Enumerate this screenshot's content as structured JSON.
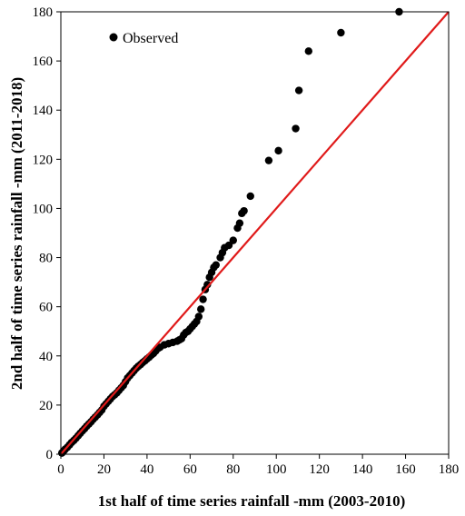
{
  "chart_data": {
    "type": "scatter",
    "title": "",
    "xlabel": "1st half of time series rainfall -mm (2003-2010)",
    "ylabel": "2nd half of time series rainfall -mm (2011-2018)",
    "xlim": [
      0,
      180
    ],
    "ylim": [
      0,
      180
    ],
    "x_ticks": [
      "0",
      "20",
      "40",
      "60",
      "80",
      "100",
      "120",
      "140",
      "160",
      "180"
    ],
    "y_ticks": [
      "0",
      "20",
      "40",
      "60",
      "80",
      "100",
      "120",
      "140",
      "160",
      "180"
    ],
    "grid": false,
    "legend_position": "top-left",
    "series": [
      {
        "name": "Observed",
        "color": "#000000",
        "marker": "circle",
        "points": [
          [
            0.5,
            0.5
          ],
          [
            1,
            1
          ],
          [
            1.5,
            1.5
          ],
          [
            2,
            2
          ],
          [
            3,
            2.8
          ],
          [
            4,
            3.8
          ],
          [
            5,
            4.8
          ],
          [
            6,
            5.6
          ],
          [
            7,
            6.5
          ],
          [
            8,
            7.5
          ],
          [
            9,
            8.5
          ],
          [
            10,
            9.5
          ],
          [
            11,
            10.4
          ],
          [
            12,
            11.4
          ],
          [
            13,
            12.3
          ],
          [
            14,
            13.2
          ],
          [
            15,
            14.2
          ],
          [
            16,
            15.1
          ],
          [
            17,
            16
          ],
          [
            18,
            17
          ],
          [
            19,
            18
          ],
          [
            20,
            19.5
          ],
          [
            21,
            20.5
          ],
          [
            22,
            21.5
          ],
          [
            23,
            22.5
          ],
          [
            24,
            23.5
          ],
          [
            25,
            24.2
          ],
          [
            26,
            25
          ],
          [
            27,
            26
          ],
          [
            28,
            27
          ],
          [
            29,
            28
          ],
          [
            30,
            29.5
          ],
          [
            31,
            31
          ],
          [
            32,
            32
          ],
          [
            33,
            33
          ],
          [
            34,
            34
          ],
          [
            35,
            35
          ],
          [
            36,
            35.8
          ],
          [
            37,
            36.5
          ],
          [
            38,
            37.3
          ],
          [
            39,
            38
          ],
          [
            40,
            38.8
          ],
          [
            41,
            39.5
          ],
          [
            42,
            40.3
          ],
          [
            43,
            41
          ],
          [
            44,
            42
          ],
          [
            45,
            43
          ],
          [
            46,
            43.5
          ],
          [
            48,
            44.5
          ],
          [
            50,
            45
          ],
          [
            52,
            45.5
          ],
          [
            54,
            46
          ],
          [
            55,
            46.5
          ],
          [
            56,
            47
          ],
          [
            57,
            48.5
          ],
          [
            58,
            49.5
          ],
          [
            59,
            50
          ],
          [
            60,
            51
          ],
          [
            61,
            52
          ],
          [
            62,
            53
          ],
          [
            63,
            54
          ],
          [
            64,
            56
          ],
          [
            65,
            59
          ],
          [
            66,
            63
          ],
          [
            67,
            67
          ],
          [
            68,
            69
          ],
          [
            69,
            72
          ],
          [
            70,
            74
          ],
          [
            71,
            76
          ],
          [
            72,
            77
          ],
          [
            74,
            80
          ],
          [
            75,
            82
          ],
          [
            76,
            84
          ],
          [
            78,
            85
          ],
          [
            80,
            87
          ],
          [
            82,
            92
          ],
          [
            83,
            94
          ],
          [
            84,
            98
          ],
          [
            85,
            99
          ],
          [
            88,
            105
          ],
          [
            96.5,
            119.5
          ],
          [
            101,
            123.5
          ],
          [
            109,
            132.5
          ],
          [
            110.5,
            148
          ],
          [
            115,
            164
          ],
          [
            130,
            171.5
          ],
          [
            157,
            180
          ]
        ]
      }
    ],
    "reference_line": {
      "x": [
        0,
        180
      ],
      "y": [
        0,
        180
      ],
      "color": "#e01a1a"
    }
  }
}
